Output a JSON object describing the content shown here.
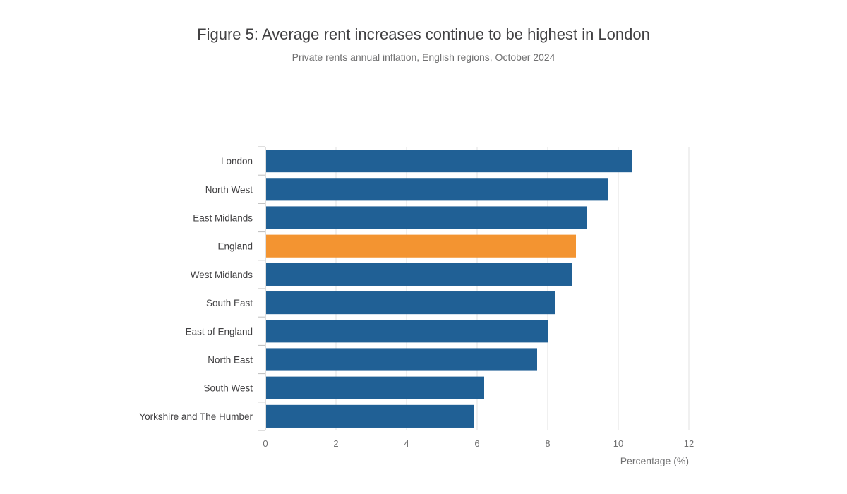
{
  "chart_data": {
    "type": "bar",
    "orientation": "horizontal",
    "title": "Figure 5: Average rent increases continue to be highest in London",
    "subtitle": "Private rents annual inflation, English regions, October 2024",
    "categories": [
      "London",
      "North West",
      "East Midlands",
      "England",
      "West Midlands",
      "South East",
      "East of England",
      "North East",
      "South West",
      "Yorkshire and The Humber"
    ],
    "values": [
      10.4,
      9.7,
      9.1,
      8.8,
      8.7,
      8.2,
      8.0,
      7.7,
      6.2,
      5.9
    ],
    "highlight_category": "England",
    "xlabel": "Percentage (%)",
    "ylabel": "",
    "xlim": [
      0,
      12
    ],
    "xticks": [
      0,
      2,
      4,
      6,
      8,
      10,
      12
    ],
    "grid": true,
    "legend": "none",
    "colors": {
      "bar": "#206095",
      "highlight": "#F39431",
      "grid": "#E0E0E0",
      "axis": "#BEBEBE"
    }
  }
}
